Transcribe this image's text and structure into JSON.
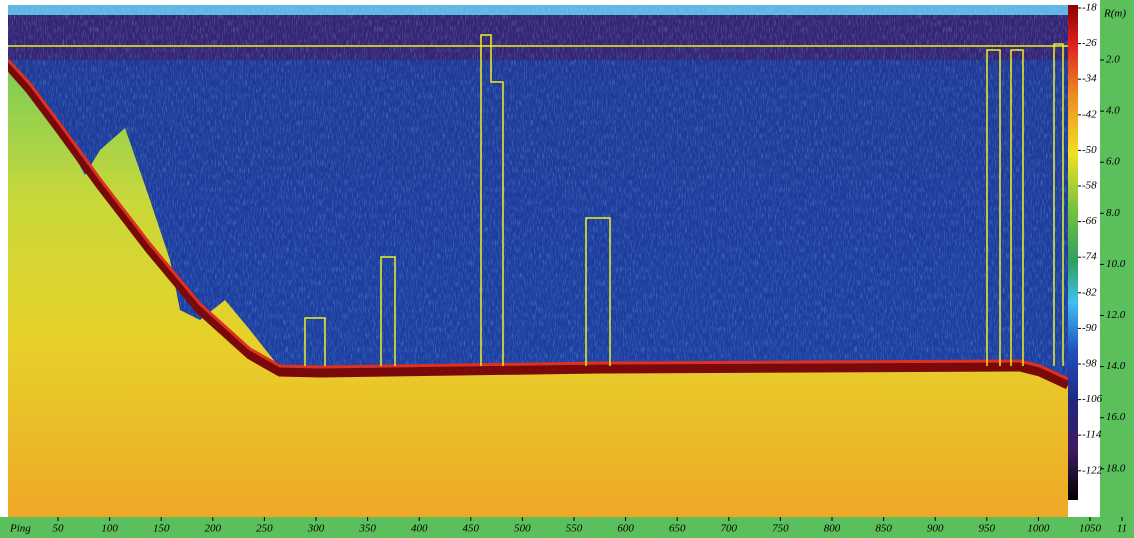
{
  "colorbar": {
    "labels": [
      "-18",
      "-26",
      "-34",
      "-42",
      "-50",
      "-58",
      "-66",
      "-74",
      "-82",
      "-90",
      "-98",
      "-106",
      "-114",
      "-122"
    ]
  },
  "depth_axis": {
    "title": "R(m)",
    "labels": [
      "2.0",
      "4.0",
      "6.0",
      "8.0",
      "10.0",
      "12.0",
      "14.0",
      "16.0",
      "18.0"
    ]
  },
  "ping_axis": {
    "title": "Ping",
    "labels": [
      "50",
      "100",
      "150",
      "200",
      "250",
      "300",
      "350",
      "400",
      "450",
      "500",
      "550",
      "600",
      "650",
      "700",
      "750",
      "800",
      "850",
      "900",
      "950",
      "1000",
      "1050",
      "11"
    ]
  }
}
